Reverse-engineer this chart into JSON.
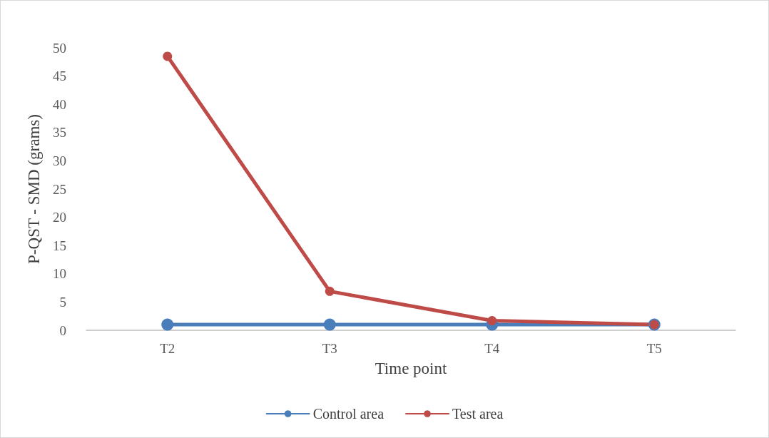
{
  "chart_data": {
    "type": "line",
    "xlabel": "Time point",
    "ylabel": "P-QST - SMD (grams)",
    "categories": [
      "T2",
      "T3",
      "T4",
      "T5"
    ],
    "series": [
      {
        "name": "Control area",
        "color": "#4a7ebb",
        "values": [
          1,
          1,
          1,
          1
        ]
      },
      {
        "name": "Test area",
        "color": "#be4b48",
        "values": [
          48.5,
          6.9,
          1.7,
          1
        ]
      }
    ],
    "ylim": [
      0,
      50
    ],
    "yticks": [
      0,
      5,
      10,
      15,
      20,
      25,
      30,
      35,
      40,
      45,
      50
    ],
    "legend": "bottom",
    "marker": "circle",
    "line_style": "solid"
  }
}
